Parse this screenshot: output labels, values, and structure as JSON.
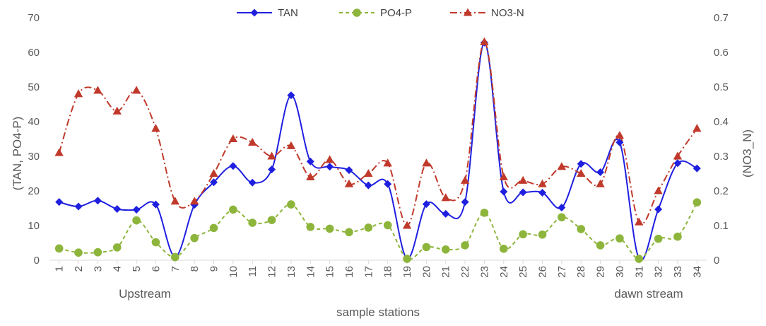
{
  "chart_data": {
    "type": "line",
    "xlabel": "sample stations",
    "ylabel_left": "(TAN, PO4-P)",
    "ylabel_right": "(NO3_N)",
    "ylim_left": [
      0,
      70
    ],
    "ylim_right": [
      0,
      0.7
    ],
    "yticks_left": [
      "0",
      "10",
      "20",
      "30",
      "40",
      "50",
      "60",
      "70"
    ],
    "yticks_right": [
      "0",
      "0.1",
      "0.2",
      "0.3",
      "0.4",
      "0.5",
      "0.6",
      "0.7"
    ],
    "categories": [
      "1",
      "2",
      "3",
      "4",
      "5",
      "6",
      "7",
      "8",
      "9",
      "10",
      "11",
      "12",
      "13",
      "14",
      "15",
      "16",
      "17",
      "18",
      "19",
      "20",
      "21",
      "22",
      "23",
      "24",
      "25",
      "26",
      "27",
      "28",
      "29",
      "30",
      "31",
      "32",
      "33",
      "34"
    ],
    "annotations": {
      "upstream": "Upstream",
      "downstream": "dawn stream"
    },
    "series": [
      {
        "name": "TAN",
        "axis": "left",
        "color": "#1f1fe0",
        "marker": "diamond",
        "dash": "solid",
        "values": [
          16.8,
          15.5,
          17.2,
          14.8,
          14.6,
          16.1,
          1.0,
          16.0,
          22.5,
          27.2,
          22.4,
          26.2,
          47.6,
          28.5,
          27.0,
          26.0,
          21.6,
          22.0,
          0.5,
          16.2,
          13.4,
          16.8,
          62.8,
          19.8,
          19.6,
          19.5,
          15.2,
          27.8,
          25.4,
          34.0,
          0.5,
          14.7,
          28.0,
          26.5
        ]
      },
      {
        "name": "PO4-P",
        "axis": "left",
        "color": "#8db53c",
        "marker": "circle",
        "dash": "dashed",
        "values": [
          3.4,
          2.2,
          2.3,
          3.7,
          11.5,
          5.2,
          0.9,
          6.4,
          9.3,
          14.6,
          10.8,
          11.6,
          16.1,
          9.6,
          9.1,
          8.1,
          9.4,
          10.1,
          0.4,
          3.8,
          3.1,
          4.3,
          13.7,
          3.3,
          7.5,
          7.4,
          12.4,
          9.0,
          4.3,
          6.3,
          0.4,
          6.2,
          6.8,
          16.7
        ]
      },
      {
        "name": "NO3-N",
        "axis": "right",
        "color": "#c0392b",
        "marker": "triangle",
        "dash": "dashdot",
        "values": [
          0.31,
          0.48,
          0.49,
          0.43,
          0.49,
          0.38,
          0.17,
          0.17,
          0.25,
          0.35,
          0.34,
          0.3,
          0.33,
          0.24,
          0.29,
          0.22,
          0.25,
          0.28,
          0.1,
          0.28,
          0.18,
          0.23,
          0.63,
          0.24,
          0.23,
          0.22,
          0.27,
          0.25,
          0.22,
          0.36,
          0.11,
          0.2,
          0.3,
          0.38
        ]
      }
    ]
  }
}
